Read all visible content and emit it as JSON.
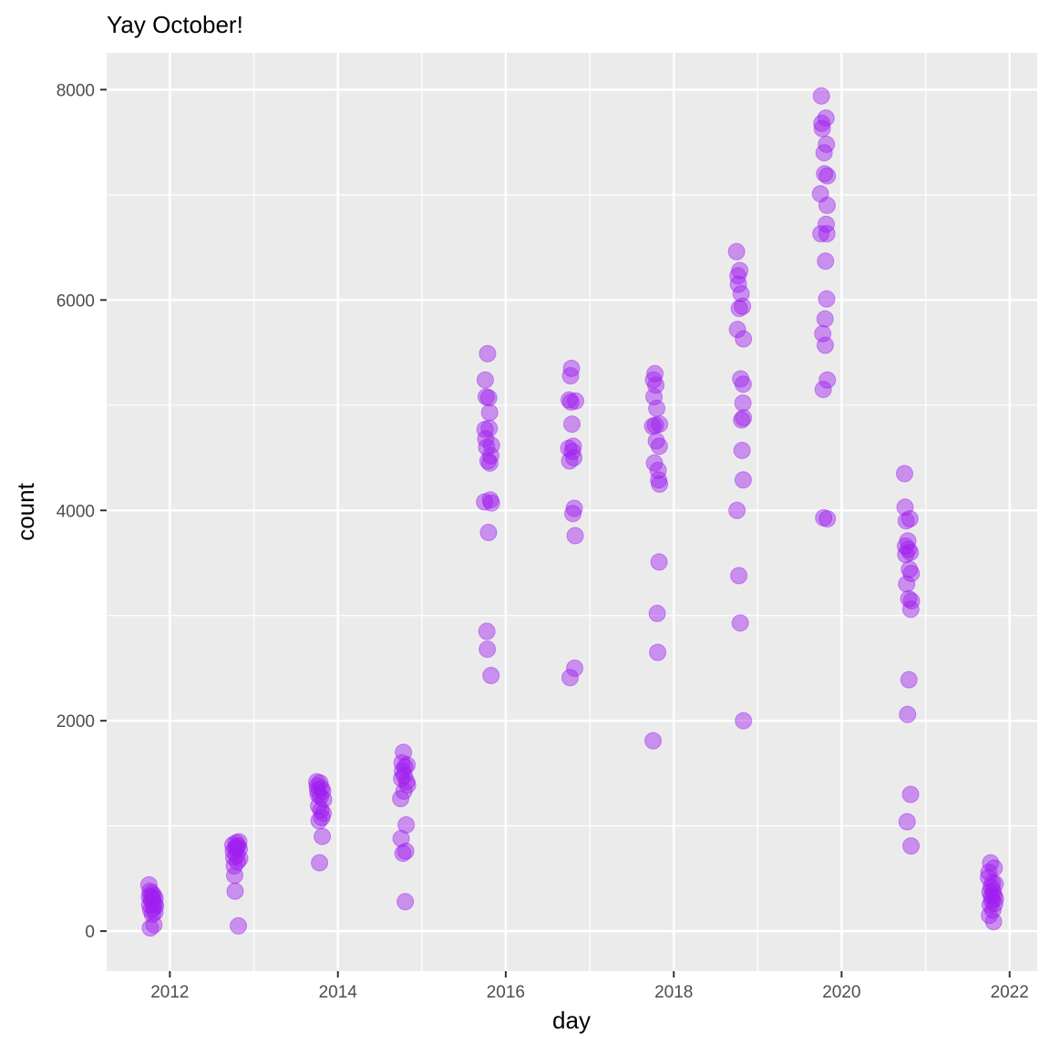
{
  "chart_data": {
    "type": "scatter",
    "title": "Yay October!",
    "xlabel": "day",
    "ylabel": "count",
    "xlim": [
      "2011-04-01",
      "2022-05-01"
    ],
    "ylim": [
      -380,
      8350
    ],
    "x_ticks": [
      {
        "value": "2012-01-01",
        "label": "2012"
      },
      {
        "value": "2014-01-01",
        "label": "2014"
      },
      {
        "value": "2016-01-01",
        "label": "2016"
      },
      {
        "value": "2018-01-01",
        "label": "2018"
      },
      {
        "value": "2020-01-01",
        "label": "2020"
      },
      {
        "value": "2022-01-01",
        "label": "2022"
      }
    ],
    "x_minor_ticks": [
      "2011-01-01",
      "2013-01-01",
      "2015-01-01",
      "2017-01-01",
      "2019-01-01",
      "2021-01-01"
    ],
    "y_ticks": [
      0,
      2000,
      4000,
      6000,
      8000
    ],
    "y_minor_ticks": [
      1000,
      3000,
      5000,
      7000
    ],
    "grid": true,
    "point_color": "#A020F0",
    "point_alpha": 0.45,
    "points": [
      {
        "x": "2011-10-02",
        "y": 440
      },
      {
        "x": "2011-10-04",
        "y": 330
      },
      {
        "x": "2011-10-05",
        "y": 250
      },
      {
        "x": "2011-10-07",
        "y": 380
      },
      {
        "x": "2011-10-08",
        "y": 30
      },
      {
        "x": "2011-10-10",
        "y": 200
      },
      {
        "x": "2011-10-12",
        "y": 320
      },
      {
        "x": "2011-10-14",
        "y": 280
      },
      {
        "x": "2011-10-15",
        "y": 360
      },
      {
        "x": "2011-10-17",
        "y": 160
      },
      {
        "x": "2011-10-19",
        "y": 300
      },
      {
        "x": "2011-10-21",
        "y": 220
      },
      {
        "x": "2011-10-22",
        "y": 340
      },
      {
        "x": "2011-10-24",
        "y": 60
      },
      {
        "x": "2011-10-26",
        "y": 260
      },
      {
        "x": "2011-10-28",
        "y": 180
      },
      {
        "x": "2011-10-29",
        "y": 310
      },
      {
        "x": "2011-10-31",
        "y": 240
      },
      {
        "x": "2012-10-01",
        "y": 820
      },
      {
        "x": "2012-10-03",
        "y": 760
      },
      {
        "x": "2012-10-05",
        "y": 700
      },
      {
        "x": "2012-10-07",
        "y": 620
      },
      {
        "x": "2012-10-09",
        "y": 530
      },
      {
        "x": "2012-10-11",
        "y": 380
      },
      {
        "x": "2012-10-13",
        "y": 790
      },
      {
        "x": "2012-10-15",
        "y": 840
      },
      {
        "x": "2012-10-17",
        "y": 720
      },
      {
        "x": "2012-10-19",
        "y": 800
      },
      {
        "x": "2012-10-21",
        "y": 660
      },
      {
        "x": "2012-10-23",
        "y": 810
      },
      {
        "x": "2012-10-25",
        "y": 50
      },
      {
        "x": "2012-10-27",
        "y": 850
      },
      {
        "x": "2012-10-29",
        "y": 780
      },
      {
        "x": "2012-10-31",
        "y": 690
      },
      {
        "x": "2013-10-01",
        "y": 1420
      },
      {
        "x": "2013-10-03",
        "y": 1380
      },
      {
        "x": "2013-10-05",
        "y": 1340
      },
      {
        "x": "2013-10-07",
        "y": 1300
      },
      {
        "x": "2013-10-09",
        "y": 1190
      },
      {
        "x": "2013-10-11",
        "y": 1050
      },
      {
        "x": "2013-10-13",
        "y": 650
      },
      {
        "x": "2013-10-15",
        "y": 1410
      },
      {
        "x": "2013-10-17",
        "y": 1280
      },
      {
        "x": "2013-10-19",
        "y": 1150
      },
      {
        "x": "2013-10-21",
        "y": 1360
      },
      {
        "x": "2013-10-23",
        "y": 1080
      },
      {
        "x": "2013-10-25",
        "y": 900
      },
      {
        "x": "2013-10-27",
        "y": 1330
      },
      {
        "x": "2013-10-29",
        "y": 1120
      },
      {
        "x": "2013-10-31",
        "y": 1250
      },
      {
        "x": "2014-10-01",
        "y": 1260
      },
      {
        "x": "2014-10-03",
        "y": 880
      },
      {
        "x": "2014-10-05",
        "y": 1450
      },
      {
        "x": "2014-10-07",
        "y": 1600
      },
      {
        "x": "2014-10-09",
        "y": 1520
      },
      {
        "x": "2014-10-11",
        "y": 740
      },
      {
        "x": "2014-10-13",
        "y": 1700
      },
      {
        "x": "2014-10-15",
        "y": 1330
      },
      {
        "x": "2014-10-17",
        "y": 1480
      },
      {
        "x": "2014-10-19",
        "y": 1560
      },
      {
        "x": "2014-10-21",
        "y": 280
      },
      {
        "x": "2014-10-23",
        "y": 760
      },
      {
        "x": "2014-10-25",
        "y": 1010
      },
      {
        "x": "2014-10-27",
        "y": 1420
      },
      {
        "x": "2014-10-29",
        "y": 1580
      },
      {
        "x": "2014-10-31",
        "y": 1390
      },
      {
        "x": "2015-10-01",
        "y": 4080
      },
      {
        "x": "2015-10-03",
        "y": 4770
      },
      {
        "x": "2015-10-04",
        "y": 5240
      },
      {
        "x": "2015-10-06",
        "y": 4680
      },
      {
        "x": "2015-10-08",
        "y": 5080
      },
      {
        "x": "2015-10-10",
        "y": 4600
      },
      {
        "x": "2015-10-11",
        "y": 2850
      },
      {
        "x": "2015-10-13",
        "y": 2680
      },
      {
        "x": "2015-10-14",
        "y": 5490
      },
      {
        "x": "2015-10-16",
        "y": 4470
      },
      {
        "x": "2015-10-18",
        "y": 3790
      },
      {
        "x": "2015-10-19",
        "y": 5070
      },
      {
        "x": "2015-10-21",
        "y": 4780
      },
      {
        "x": "2015-10-23",
        "y": 4930
      },
      {
        "x": "2015-10-24",
        "y": 4450
      },
      {
        "x": "2015-10-26",
        "y": 4100
      },
      {
        "x": "2015-10-28",
        "y": 4520
      },
      {
        "x": "2015-10-29",
        "y": 2430
      },
      {
        "x": "2015-10-31",
        "y": 4620
      },
      {
        "x": "2015-10-31",
        "y": 4070
      },
      {
        "x": "2016-10-01",
        "y": 4590
      },
      {
        "x": "2016-10-03",
        "y": 5050
      },
      {
        "x": "2016-10-05",
        "y": 4470
      },
      {
        "x": "2016-10-07",
        "y": 2410
      },
      {
        "x": "2016-10-09",
        "y": 5280
      },
      {
        "x": "2016-10-11",
        "y": 5030
      },
      {
        "x": "2016-10-13",
        "y": 5350
      },
      {
        "x": "2016-10-15",
        "y": 4820
      },
      {
        "x": "2016-10-17",
        "y": 4560
      },
      {
        "x": "2016-10-19",
        "y": 3970
      },
      {
        "x": "2016-10-21",
        "y": 4610
      },
      {
        "x": "2016-10-23",
        "y": 4500
      },
      {
        "x": "2016-10-25",
        "y": 4020
      },
      {
        "x": "2016-10-27",
        "y": 2500
      },
      {
        "x": "2016-10-29",
        "y": 3760
      },
      {
        "x": "2016-10-31",
        "y": 5040
      },
      {
        "x": "2017-10-01",
        "y": 4800
      },
      {
        "x": "2017-10-03",
        "y": 1810
      },
      {
        "x": "2017-10-05",
        "y": 5240
      },
      {
        "x": "2017-10-07",
        "y": 5080
      },
      {
        "x": "2017-10-09",
        "y": 4450
      },
      {
        "x": "2017-10-11",
        "y": 5300
      },
      {
        "x": "2017-10-13",
        "y": 4810
      },
      {
        "x": "2017-10-15",
        "y": 5190
      },
      {
        "x": "2017-10-17",
        "y": 4660
      },
      {
        "x": "2017-10-19",
        "y": 4970
      },
      {
        "x": "2017-10-21",
        "y": 3020
      },
      {
        "x": "2017-10-23",
        "y": 2650
      },
      {
        "x": "2017-10-25",
        "y": 4380
      },
      {
        "x": "2017-10-27",
        "y": 4290
      },
      {
        "x": "2017-10-29",
        "y": 3510
      },
      {
        "x": "2017-10-30",
        "y": 4610
      },
      {
        "x": "2017-10-31",
        "y": 4250
      },
      {
        "x": "2017-10-31",
        "y": 4820
      },
      {
        "x": "2018-10-01",
        "y": 6460
      },
      {
        "x": "2018-10-03",
        "y": 4000
      },
      {
        "x": "2018-10-05",
        "y": 5720
      },
      {
        "x": "2018-10-07",
        "y": 6230
      },
      {
        "x": "2018-10-09",
        "y": 6150
      },
      {
        "x": "2018-10-11",
        "y": 3380
      },
      {
        "x": "2018-10-13",
        "y": 5920
      },
      {
        "x": "2018-10-15",
        "y": 6280
      },
      {
        "x": "2018-10-17",
        "y": 2930
      },
      {
        "x": "2018-10-19",
        "y": 5250
      },
      {
        "x": "2018-10-21",
        "y": 6060
      },
      {
        "x": "2018-10-23",
        "y": 4860
      },
      {
        "x": "2018-10-25",
        "y": 4570
      },
      {
        "x": "2018-10-27",
        "y": 5940
      },
      {
        "x": "2018-10-29",
        "y": 5020
      },
      {
        "x": "2018-10-30",
        "y": 4290
      },
      {
        "x": "2018-10-30",
        "y": 5200
      },
      {
        "x": "2018-10-31",
        "y": 5630
      },
      {
        "x": "2018-10-31",
        "y": 2000
      },
      {
        "x": "2018-10-31",
        "y": 4880
      },
      {
        "x": "2019-10-01",
        "y": 7010
      },
      {
        "x": "2019-10-03",
        "y": 6630
      },
      {
        "x": "2019-10-05",
        "y": 7940
      },
      {
        "x": "2019-10-07",
        "y": 7680
      },
      {
        "x": "2019-10-09",
        "y": 7630
      },
      {
        "x": "2019-10-11",
        "y": 5680
      },
      {
        "x": "2019-10-13",
        "y": 5150
      },
      {
        "x": "2019-10-15",
        "y": 3930
      },
      {
        "x": "2019-10-17",
        "y": 7400
      },
      {
        "x": "2019-10-19",
        "y": 7200
      },
      {
        "x": "2019-10-21",
        "y": 5820
      },
      {
        "x": "2019-10-22",
        "y": 5570
      },
      {
        "x": "2019-10-23",
        "y": 6370
      },
      {
        "x": "2019-10-25",
        "y": 7730
      },
      {
        "x": "2019-10-26",
        "y": 6720
      },
      {
        "x": "2019-10-27",
        "y": 7480
      },
      {
        "x": "2019-10-28",
        "y": 6010
      },
      {
        "x": "2019-10-29",
        "y": 6630
      },
      {
        "x": "2019-10-30",
        "y": 6900
      },
      {
        "x": "2019-10-31",
        "y": 7180
      },
      {
        "x": "2019-10-31",
        "y": 3920
      },
      {
        "x": "2019-10-31",
        "y": 5240
      },
      {
        "x": "2020-10-01",
        "y": 4350
      },
      {
        "x": "2020-10-03",
        "y": 4030
      },
      {
        "x": "2020-10-05",
        "y": 3660
      },
      {
        "x": "2020-10-06",
        "y": 3580
      },
      {
        "x": "2020-10-08",
        "y": 3900
      },
      {
        "x": "2020-10-10",
        "y": 3300
      },
      {
        "x": "2020-10-12",
        "y": 1040
      },
      {
        "x": "2020-10-14",
        "y": 2060
      },
      {
        "x": "2020-10-15",
        "y": 3710
      },
      {
        "x": "2020-10-17",
        "y": 3630
      },
      {
        "x": "2020-10-19",
        "y": 3160
      },
      {
        "x": "2020-10-20",
        "y": 2390
      },
      {
        "x": "2020-10-22",
        "y": 3440
      },
      {
        "x": "2020-10-24",
        "y": 3920
      },
      {
        "x": "2020-10-26",
        "y": 3600
      },
      {
        "x": "2020-10-27",
        "y": 1300
      },
      {
        "x": "2020-10-28",
        "y": 3060
      },
      {
        "x": "2020-10-29",
        "y": 810
      },
      {
        "x": "2020-10-30",
        "y": 3400
      },
      {
        "x": "2020-10-31",
        "y": 3140
      },
      {
        "x": "2021-10-01",
        "y": 510
      },
      {
        "x": "2021-10-03",
        "y": 560
      },
      {
        "x": "2021-10-05",
        "y": 150
      },
      {
        "x": "2021-10-07",
        "y": 370
      },
      {
        "x": "2021-10-08",
        "y": 250
      },
      {
        "x": "2021-10-10",
        "y": 650
      },
      {
        "x": "2021-10-12",
        "y": 420
      },
      {
        "x": "2021-10-14",
        "y": 330
      },
      {
        "x": "2021-10-16",
        "y": 290
      },
      {
        "x": "2021-10-18",
        "y": 460
      },
      {
        "x": "2021-10-20",
        "y": 200
      },
      {
        "x": "2021-10-21",
        "y": 380
      },
      {
        "x": "2021-10-23",
        "y": 90
      },
      {
        "x": "2021-10-25",
        "y": 340
      },
      {
        "x": "2021-10-26",
        "y": 600
      },
      {
        "x": "2021-10-28",
        "y": 260
      },
      {
        "x": "2021-10-30",
        "y": 450
      },
      {
        "x": "2021-10-31",
        "y": 310
      }
    ]
  }
}
